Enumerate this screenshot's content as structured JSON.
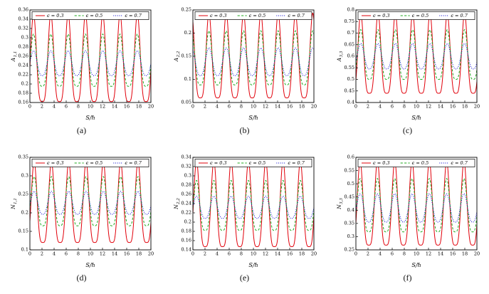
{
  "chart_data": [
    {
      "id": "a",
      "caption": "(a)",
      "type": "line",
      "xlabel": "S/ℏ",
      "ylabel": "A_{1,1}",
      "xlim": [
        0,
        20
      ],
      "xticks": [
        0,
        2,
        4,
        6,
        8,
        10,
        12,
        14,
        16,
        18,
        20
      ],
      "ylim": [
        0.16,
        0.36
      ],
      "yticks": [
        0.16,
        0.18,
        0.2,
        0.22,
        0.24,
        0.26,
        0.28,
        0.3,
        0.32,
        0.34,
        0.36
      ],
      "period": 2.86,
      "peak_x": 0.6,
      "legend_position": "top",
      "grid": false,
      "series": [
        {
          "name": "ϵ = 0.3",
          "color": "#e1000a",
          "dash": "solid",
          "min": 0.162,
          "max": 0.352,
          "sharp": 2.0
        },
        {
          "name": "ϵ = 0.5",
          "color": "#1faa1f",
          "dash": "dashed",
          "min": 0.195,
          "max": 0.308,
          "sharp": 1.7
        },
        {
          "name": "ϵ = 0.7",
          "color": "#0000cd",
          "dash": "dotted",
          "min": 0.218,
          "max": 0.272,
          "sharp": 1.4
        }
      ]
    },
    {
      "id": "b",
      "caption": "(b)",
      "type": "line",
      "xlabel": "S/ℏ",
      "ylabel": "A_{2,2}",
      "xlim": [
        0,
        20
      ],
      "xticks": [
        0,
        2,
        4,
        6,
        8,
        10,
        12,
        14,
        16,
        18,
        20
      ],
      "ylim": [
        0.05,
        0.25
      ],
      "yticks": [
        0.05,
        0.1,
        0.15,
        0.2,
        0.25
      ],
      "period": 2.86,
      "peak_x": 2.65,
      "legend_position": "top",
      "grid": false,
      "series": [
        {
          "name": "ϵ = 0.3",
          "color": "#e1000a",
          "dash": "solid",
          "min": 0.06,
          "max": 0.243,
          "sharp": 2.0
        },
        {
          "name": "ϵ = 0.5",
          "color": "#1faa1f",
          "dash": "dashed",
          "min": 0.088,
          "max": 0.205,
          "sharp": 1.7
        },
        {
          "name": "ϵ = 0.7",
          "color": "#0000cd",
          "dash": "dotted",
          "min": 0.108,
          "max": 0.168,
          "sharp": 1.4
        }
      ]
    },
    {
      "id": "c",
      "caption": "(c)",
      "type": "line",
      "xlabel": "S/ℏ",
      "ylabel": "A_{3,3}",
      "xlim": [
        0,
        20
      ],
      "xticks": [
        0,
        2,
        4,
        6,
        8,
        10,
        12,
        14,
        16,
        18,
        20
      ],
      "ylim": [
        0.4,
        0.8
      ],
      "yticks": [
        0.4,
        0.45,
        0.5,
        0.55,
        0.6,
        0.65,
        0.7,
        0.75,
        0.8
      ],
      "period": 2.86,
      "peak_x": 0.8,
      "legend_position": "top",
      "grid": false,
      "series": [
        {
          "name": "ϵ = 0.3",
          "color": "#e1000a",
          "dash": "solid",
          "min": 0.44,
          "max": 0.785,
          "sharp": 2.0
        },
        {
          "name": "ϵ = 0.5",
          "color": "#1faa1f",
          "dash": "dashed",
          "min": 0.5,
          "max": 0.715,
          "sharp": 1.7
        },
        {
          "name": "ϵ = 0.7",
          "color": "#0000cd",
          "dash": "dotted",
          "min": 0.545,
          "max": 0.655,
          "sharp": 1.4
        }
      ]
    },
    {
      "id": "d",
      "caption": "(d)",
      "type": "line",
      "xlabel": "S/ℏ",
      "ylabel": "N_{1,1}",
      "xlim": [
        0,
        20
      ],
      "xticks": [
        0,
        2,
        4,
        6,
        8,
        10,
        12,
        14,
        16,
        18,
        20
      ],
      "ylim": [
        0.1,
        0.35
      ],
      "yticks": [
        0.1,
        0.15,
        0.2,
        0.25,
        0.3,
        0.35
      ],
      "period": 2.86,
      "peak_x": 0.7,
      "legend_position": "top",
      "grid": false,
      "series": [
        {
          "name": "ϵ = 0.3",
          "color": "#e1000a",
          "dash": "solid",
          "min": 0.12,
          "max": 0.338,
          "sharp": 2.0
        },
        {
          "name": "ϵ = 0.5",
          "color": "#1faa1f",
          "dash": "dashed",
          "min": 0.165,
          "max": 0.298,
          "sharp": 1.7
        },
        {
          "name": "ϵ = 0.7",
          "color": "#0000cd",
          "dash": "dotted",
          "min": 0.196,
          "max": 0.258,
          "sharp": 1.4
        }
      ]
    },
    {
      "id": "e",
      "caption": "(e)",
      "type": "line",
      "xlabel": "S/ℏ",
      "ylabel": "N_{2,2}",
      "xlim": [
        0,
        20
      ],
      "xticks": [
        0,
        2,
        4,
        6,
        8,
        10,
        12,
        14,
        16,
        18,
        20
      ],
      "ylim": [
        0.14,
        0.34
      ],
      "yticks": [
        0.14,
        0.16,
        0.18,
        0.2,
        0.22,
        0.24,
        0.26,
        0.28,
        0.3,
        0.32,
        0.34
      ],
      "period": 2.86,
      "peak_x": 0.6,
      "legend_position": "top",
      "grid": false,
      "series": [
        {
          "name": "ϵ = 0.3",
          "color": "#e1000a",
          "dash": "solid",
          "min": 0.147,
          "max": 0.332,
          "sharp": 2.0
        },
        {
          "name": "ϵ = 0.5",
          "color": "#1faa1f",
          "dash": "dashed",
          "min": 0.182,
          "max": 0.29,
          "sharp": 1.7
        },
        {
          "name": "ϵ = 0.7",
          "color": "#0000cd",
          "dash": "dotted",
          "min": 0.208,
          "max": 0.256,
          "sharp": 1.4
        }
      ]
    },
    {
      "id": "f",
      "caption": "(f)",
      "type": "line",
      "xlabel": "S/ℏ",
      "ylabel": "N_{3,3}",
      "xlim": [
        0,
        20
      ],
      "xticks": [
        0,
        2,
        4,
        6,
        8,
        10,
        12,
        14,
        16,
        18,
        20
      ],
      "ylim": [
        0.25,
        0.6
      ],
      "yticks": [
        0.25,
        0.3,
        0.35,
        0.4,
        0.45,
        0.5,
        0.55,
        0.6
      ],
      "period": 2.86,
      "peak_x": 0.7,
      "legend_position": "top",
      "grid": false,
      "series": [
        {
          "name": "ϵ = 0.3",
          "color": "#e1000a",
          "dash": "solid",
          "min": 0.268,
          "max": 0.585,
          "sharp": 2.0
        },
        {
          "name": "ϵ = 0.5",
          "color": "#1faa1f",
          "dash": "dashed",
          "min": 0.318,
          "max": 0.52,
          "sharp": 1.7
        },
        {
          "name": "ϵ = 0.7",
          "color": "#0000cd",
          "dash": "dotted",
          "min": 0.355,
          "max": 0.462,
          "sharp": 1.4
        }
      ]
    }
  ]
}
